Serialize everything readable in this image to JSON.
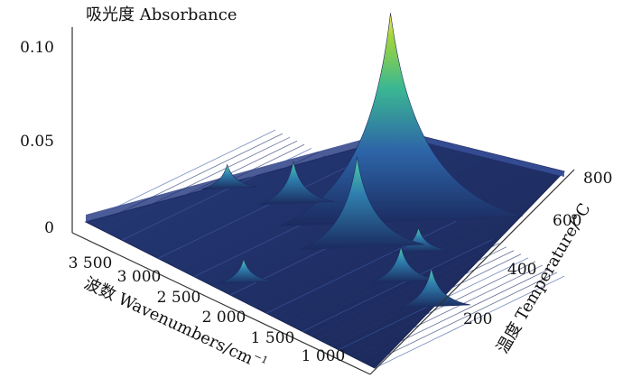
{
  "chart_data": {
    "type": "surface3d",
    "title": "",
    "zlabel": "吸光度 Absorbance",
    "xlabel": "波数 Wavenumbers/cm",
    "xlabel_sup": "−1",
    "ylabel": "温度 Temperature/°C",
    "z_ticks": [
      "0",
      "0.05",
      "0.10"
    ],
    "x_ticks": [
      "3 500",
      "3 000",
      "2 500",
      "2 000",
      "1 500",
      "1 000"
    ],
    "y_ticks": [
      "200",
      "400",
      "600",
      "800"
    ],
    "xlim": [
      3900,
      600
    ],
    "ylim": [
      30,
      800
    ],
    "zlim": [
      0,
      0.12
    ],
    "peaks": [
      {
        "wavenumber": 2360,
        "temperature": 720,
        "absorbance": 0.112
      },
      {
        "wavenumber": 2180,
        "temperature": 520,
        "absorbance": 0.048
      },
      {
        "wavenumber": 1760,
        "temperature": 620,
        "absorbance": 0.012
      },
      {
        "wavenumber": 1510,
        "temperature": 460,
        "absorbance": 0.018
      },
      {
        "wavenumber": 1050,
        "temperature": 420,
        "absorbance": 0.02
      },
      {
        "wavenumber": 3020,
        "temperature": 560,
        "absorbance": 0.022
      },
      {
        "wavenumber": 3550,
        "temperature": 480,
        "absorbance": 0.012
      },
      {
        "wavenumber": 2350,
        "temperature": 120,
        "absorbance": 0.012
      }
    ]
  }
}
